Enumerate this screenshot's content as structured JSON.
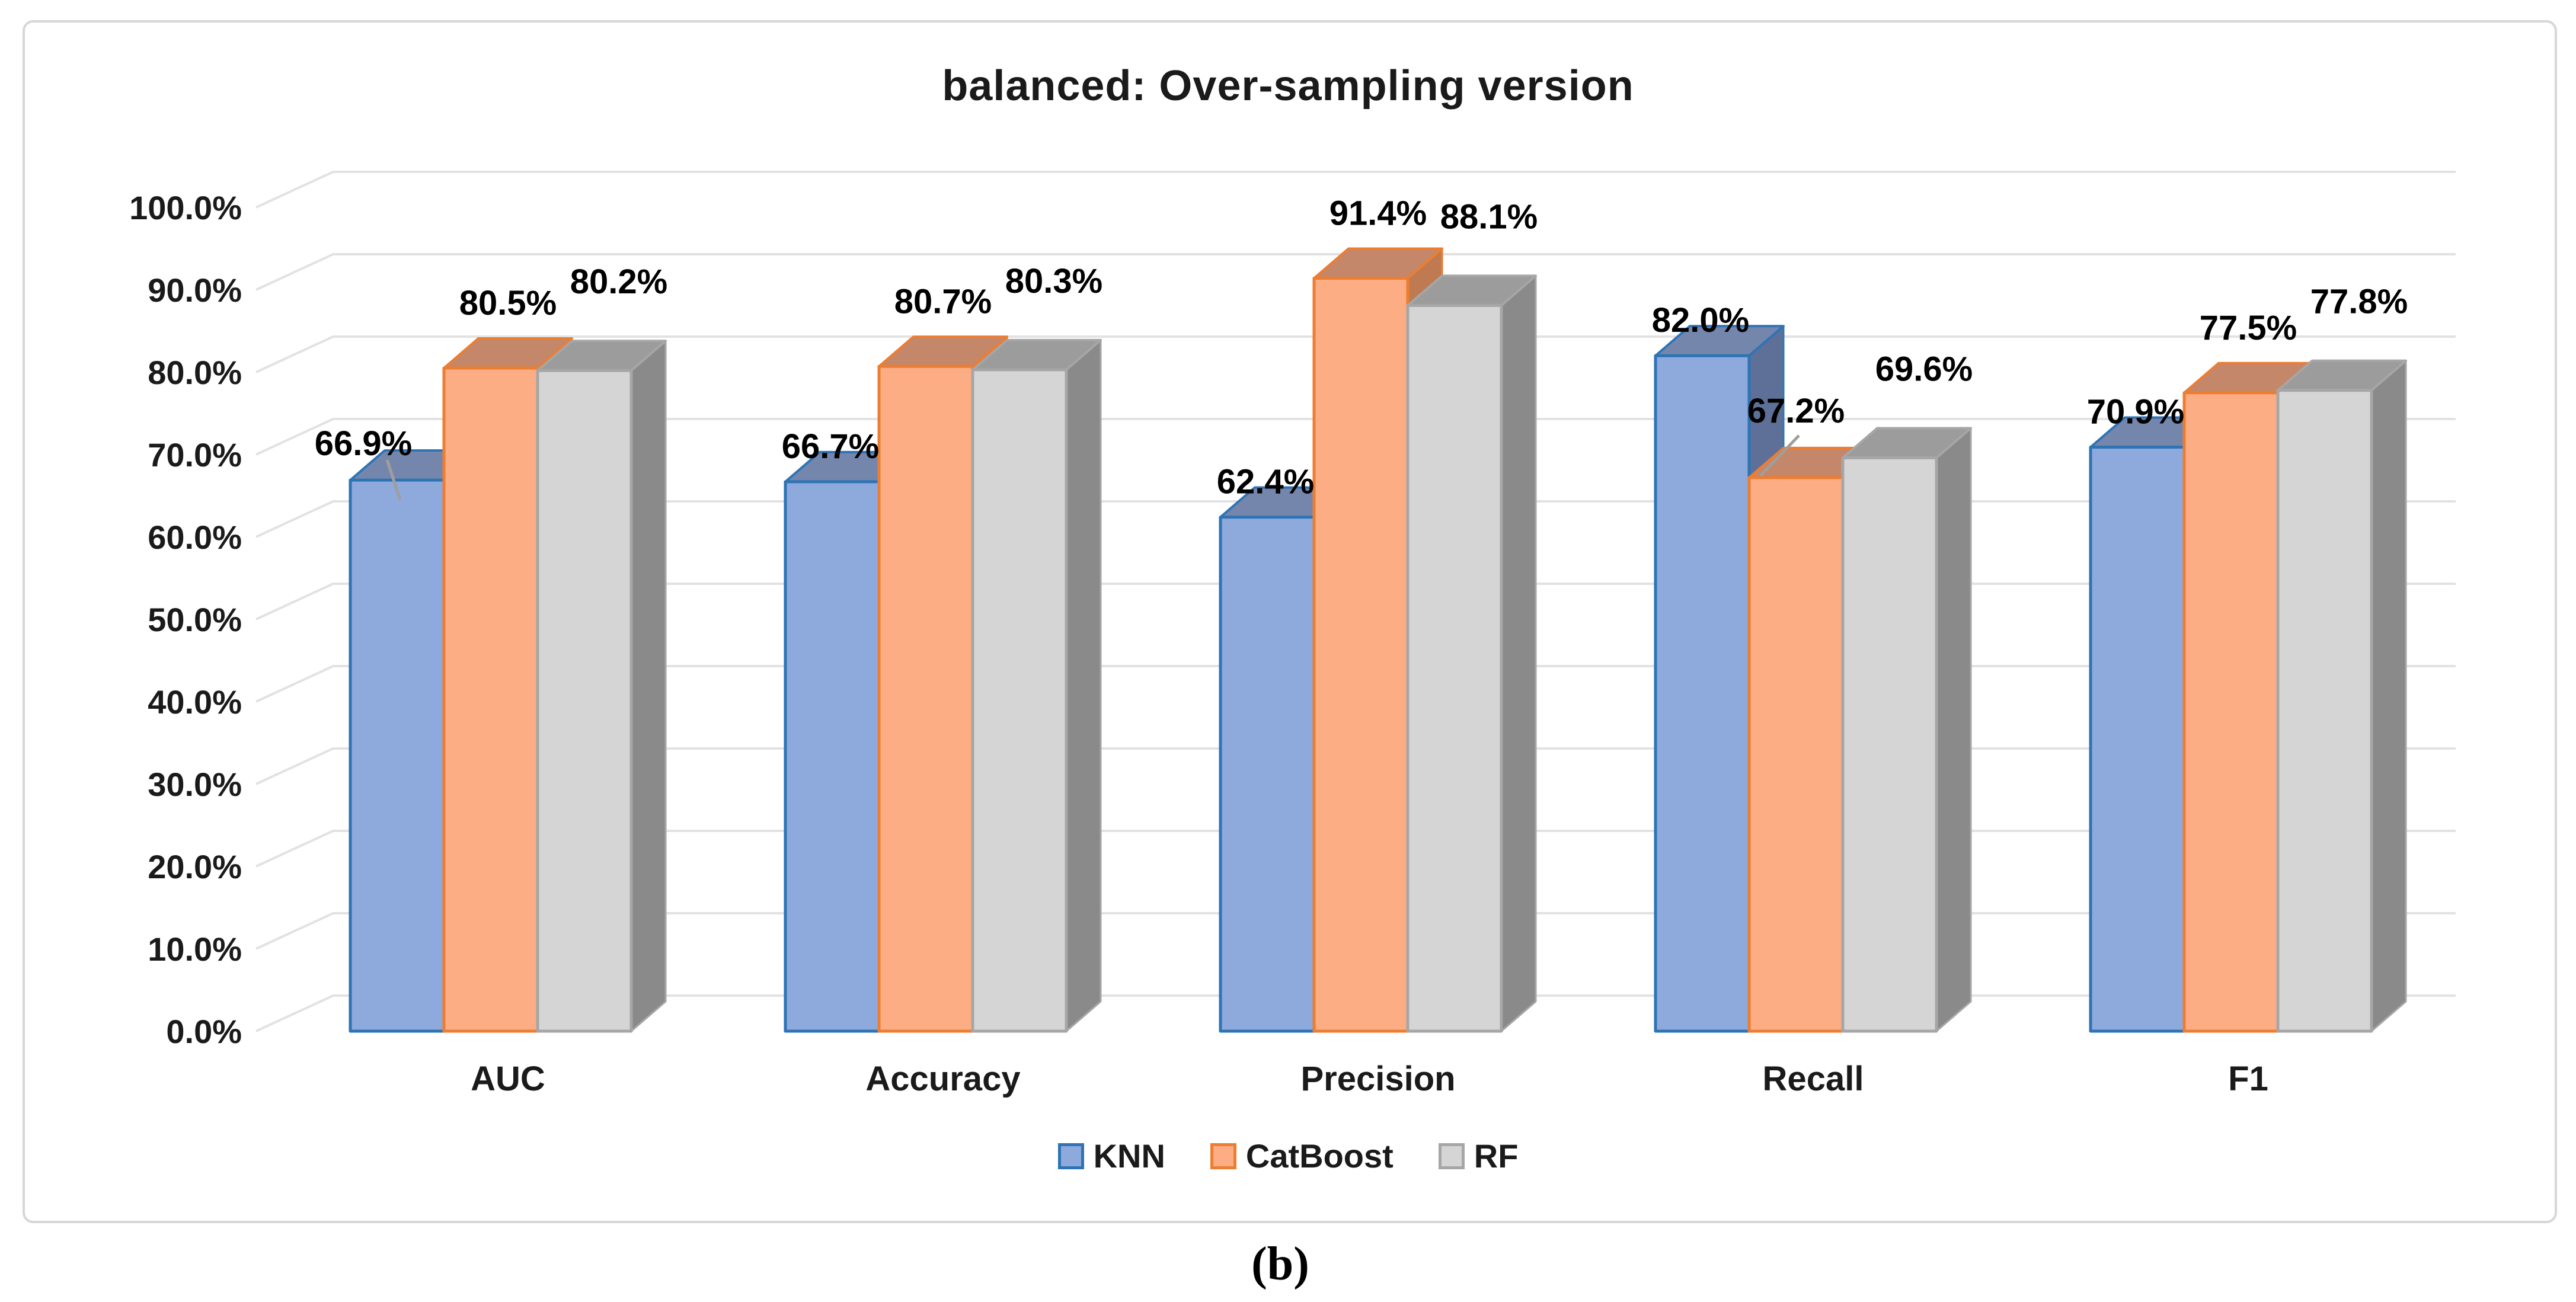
{
  "title": "balanced: Over-sampling version",
  "caption": "(b)",
  "colors": {
    "background": "#FFFFFF",
    "frame_border": "#D7D7D7",
    "gridline": "#E2E2E2",
    "axis_text": "#1A1A1A",
    "data_label_text": "#000000",
    "leader_line": "#9E9E9E"
  },
  "chart_data": {
    "type": "bar",
    "variant": "3d-column",
    "title": "balanced: Over-sampling version",
    "categories": [
      "AUC",
      "Accuracy",
      "Precision",
      "Recall",
      "F1"
    ],
    "series": [
      {
        "name": "KNN",
        "color": "#8EA9DB",
        "border": "#2E74B5",
        "top_face": "#7586AD",
        "side_face": "#5E7098",
        "values": [
          66.9,
          66.7,
          62.4,
          82.0,
          70.9
        ]
      },
      {
        "name": "CatBoost",
        "color": "#FCAD84",
        "border": "#ED7D31",
        "top_face": "#C58769",
        "side_face": "#C07A52",
        "values": [
          80.5,
          80.7,
          91.4,
          67.2,
          77.5
        ]
      },
      {
        "name": "RF",
        "color": "#D5D5D5",
        "border": "#A6A6A6",
        "top_face": "#9C9C9C",
        "side_face": "#8A8A8A",
        "values": [
          80.2,
          80.3,
          88.1,
          69.6,
          77.8
        ]
      }
    ],
    "xlabel": "",
    "ylabel": "",
    "ylim": [
      0,
      100
    ],
    "yticks": [
      "0.0%",
      "10.0%",
      "20.0%",
      "30.0%",
      "40.0%",
      "50.0%",
      "60.0%",
      "70.0%",
      "80.0%",
      "90.0%",
      "100.0%"
    ],
    "grid": true,
    "data_labels": true,
    "legend_position": "bottom",
    "label_leaders": [
      [
        0,
        0
      ],
      [
        3,
        1
      ]
    ]
  }
}
